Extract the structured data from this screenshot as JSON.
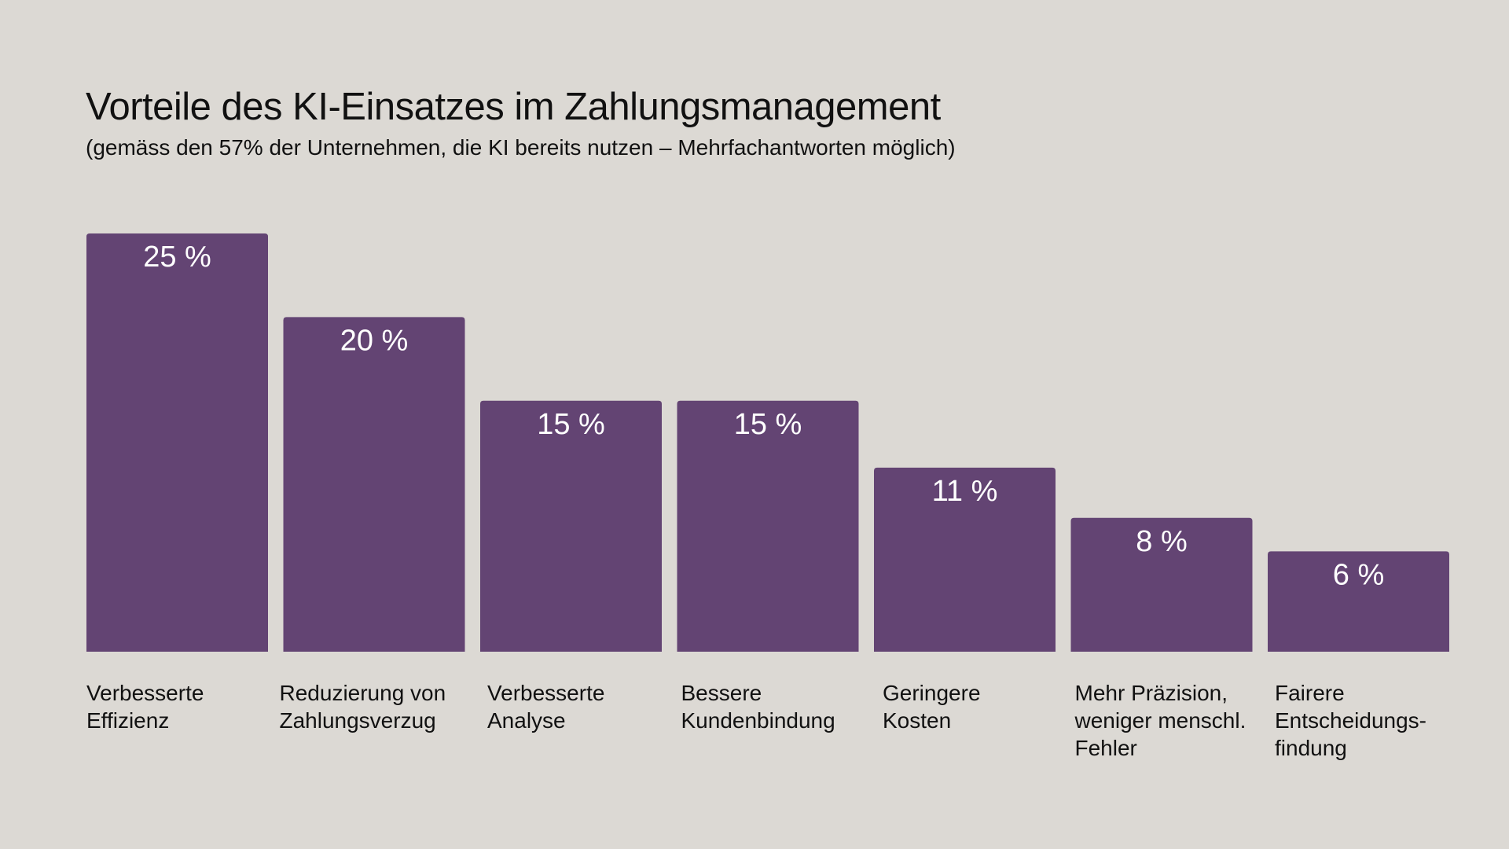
{
  "title": "Vorteile des KI-Einsatzes im Zahlungsmanagement",
  "subtitle": "(gemäss den 57% der Unternehmen, die KI bereits nutzen – Mehrfachantworten möglich)",
  "colors": {
    "background": "#dcd9d4",
    "bar": "#634473",
    "bar_label": "#ffffff",
    "text": "#111111"
  },
  "chart_data": {
    "type": "bar",
    "title": "Vorteile des KI-Einsatzes im Zahlungsmanagement",
    "subtitle": "(gemäss den 57% der Unternehmen, die KI bereits nutzen – Mehrfachantworten möglich)",
    "categories": [
      [
        "Verbesserte",
        "Effizienz"
      ],
      [
        "Reduzierung von",
        "Zahlungsverzug"
      ],
      [
        "Verbesserte",
        "Analyse"
      ],
      [
        "Bessere",
        "Kundenbindung"
      ],
      [
        "Geringere",
        "Kosten"
      ],
      [
        "Mehr Präzision,",
        "weniger menschl.",
        "Fehler"
      ],
      [
        "Fairere",
        "Entscheidungs-",
        "findung"
      ]
    ],
    "values": [
      25,
      20,
      15,
      15,
      11,
      8,
      6
    ],
    "data_labels": [
      "25 %",
      "20 %",
      "15 %",
      "15 %",
      "11 %",
      "8 %",
      "6 %"
    ],
    "unit": "%",
    "ylim": [
      0,
      25
    ],
    "grid": false,
    "legend": "none",
    "axes_visible": false
  }
}
